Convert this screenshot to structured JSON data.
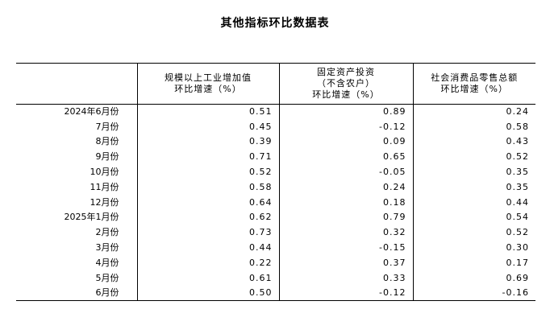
{
  "title": "其他指标环比数据表",
  "columns": [
    {
      "lines": [
        ""
      ]
    },
    {
      "lines": [
        "规模以上工业增加值",
        "环比增速（%）"
      ]
    },
    {
      "lines": [
        "固定资产投资",
        "（不含农户）",
        "环比增速（%）"
      ]
    },
    {
      "lines": [
        "社会消费品零售总额",
        "环比增速（%）"
      ]
    }
  ],
  "rows": [
    {
      "period": "2024年6月份",
      "industry": "0.51",
      "investment": "0.89",
      "retail": "0.24"
    },
    {
      "period": "7月份",
      "industry": "0.45",
      "investment": "-0.12",
      "retail": "0.58"
    },
    {
      "period": "8月份",
      "industry": "0.39",
      "investment": "0.09",
      "retail": "0.43"
    },
    {
      "period": "9月份",
      "industry": "0.71",
      "investment": "0.65",
      "retail": "0.52"
    },
    {
      "period": "10月份",
      "industry": "0.52",
      "investment": "-0.05",
      "retail": "0.35"
    },
    {
      "period": "11月份",
      "industry": "0.58",
      "investment": "0.24",
      "retail": "0.35"
    },
    {
      "period": "12月份",
      "industry": "0.64",
      "investment": "0.18",
      "retail": "0.44"
    },
    {
      "period": "2025年1月份",
      "industry": "0.62",
      "investment": "0.79",
      "retail": "0.54"
    },
    {
      "period": "2月份",
      "industry": "0.73",
      "investment": "0.32",
      "retail": "0.52"
    },
    {
      "period": "3月份",
      "industry": "0.44",
      "investment": "-0.15",
      "retail": "0.30"
    },
    {
      "period": "4月份",
      "industry": "0.22",
      "investment": "0.37",
      "retail": "0.17"
    },
    {
      "period": "5月份",
      "industry": "0.61",
      "investment": "0.33",
      "retail": "0.69"
    },
    {
      "period": "6月份",
      "industry": "0.50",
      "investment": "-0.12",
      "retail": "-0.16"
    }
  ]
}
